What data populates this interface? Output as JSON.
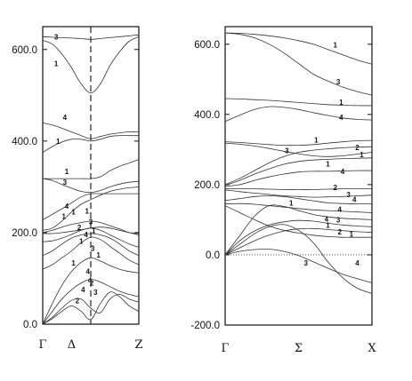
{
  "chart_data": [
    {
      "type": "line",
      "ylim": [
        0,
        650
      ],
      "yticks": [
        {
          "value": 0,
          "label": "0.0"
        },
        {
          "value": 200,
          "label": "200.0"
        },
        {
          "value": 400,
          "label": "400.0"
        },
        {
          "value": 600,
          "label": "600.0"
        }
      ],
      "xticks": [
        {
          "value": 0,
          "label": "Γ"
        },
        {
          "value": 0.3,
          "label": "Δ"
        },
        {
          "value": 1,
          "label": "Z"
        }
      ],
      "vline_x": 0.5,
      "x": [
        0,
        0.1,
        0.2,
        0.3,
        0.4,
        0.5,
        0.6,
        0.7,
        0.8,
        0.9,
        1.0
      ],
      "series": [
        {
          "values": [
            628,
            627,
            626,
            625,
            624,
            622,
            624,
            626,
            628,
            630,
            632
          ]
        },
        {
          "values": [
            620,
            612,
            590,
            560,
            525,
            505,
            525,
            565,
            595,
            618,
            628
          ]
        },
        {
          "values": [
            440,
            435,
            428,
            420,
            412,
            405,
            410,
            415,
            418,
            420,
            420
          ]
        },
        {
          "values": [
            375,
            388,
            398,
            404,
            404,
            400,
            404,
            410,
            412,
            412,
            412
          ]
        },
        {
          "values": [
            318,
            318,
            318,
            318,
            318,
            318,
            322,
            335,
            345,
            352,
            360
          ]
        },
        {
          "values": [
            318,
            314,
            305,
            297,
            290,
            288,
            292,
            300,
            306,
            310,
            312
          ]
        },
        {
          "values": [
            228,
            240,
            252,
            265,
            278,
            285,
            285,
            285,
            285,
            285,
            285
          ]
        },
        {
          "values": [
            205,
            210,
            225,
            245,
            262,
            272,
            282,
            290,
            295,
            298,
            300
          ]
        },
        {
          "values": [
            200,
            205,
            212,
            218,
            222,
            225,
            222,
            215,
            208,
            200,
            195
          ]
        },
        {
          "values": [
            198,
            198,
            200,
            203,
            206,
            210,
            212,
            210,
            205,
            200,
            198
          ]
        },
        {
          "values": [
            180,
            182,
            188,
            196,
            205,
            210,
            205,
            195,
            185,
            175,
            168
          ]
        },
        {
          "values": [
            150,
            160,
            175,
            188,
            195,
            198,
            195,
            188,
            175,
            160,
            150
          ]
        },
        {
          "values": [
            120,
            130,
            145,
            160,
            178,
            190,
            185,
            170,
            155,
            140,
            130
          ]
        },
        {
          "values": [
            0,
            45,
            85,
            115,
            135,
            145,
            138,
            128,
            120,
            115,
            112
          ]
        },
        {
          "values": [
            0,
            28,
            55,
            75,
            90,
            98,
            92,
            82,
            72,
            65,
            60
          ]
        },
        {
          "values": [
            0,
            15,
            35,
            52,
            55,
            35,
            25,
            55,
            65,
            55,
            48
          ]
        },
        {
          "values": [
            0,
            12,
            28,
            40,
            28,
            10,
            45,
            70,
            60,
            40,
            28
          ]
        }
      ],
      "labels": [
        {
          "text": "3",
          "x": 0.14,
          "y": 622
        },
        {
          "text": "1",
          "x": 0.14,
          "y": 564
        },
        {
          "text": "4",
          "x": 0.23,
          "y": 446
        },
        {
          "text": "1",
          "x": 0.16,
          "y": 394
        },
        {
          "text": "1",
          "x": 0.25,
          "y": 328
        },
        {
          "text": "3",
          "x": 0.23,
          "y": 305
        },
        {
          "text": "4",
          "x": 0.25,
          "y": 252
        },
        {
          "text": "1",
          "x": 0.32,
          "y": 240
        },
        {
          "text": "1",
          "x": 0.46,
          "y": 242
        },
        {
          "text": "1",
          "x": 0.22,
          "y": 230
        },
        {
          "text": "2",
          "x": 0.38,
          "y": 206
        },
        {
          "text": "3",
          "x": 0.5,
          "y": 218
        },
        {
          "text": "4",
          "x": 0.45,
          "y": 190
        },
        {
          "text": "1",
          "x": 0.53,
          "y": 199
        },
        {
          "text": "1",
          "x": 0.4,
          "y": 176
        },
        {
          "text": "3",
          "x": 0.52,
          "y": 160
        },
        {
          "text": "1",
          "x": 0.58,
          "y": 146
        },
        {
          "text": "1",
          "x": 0.32,
          "y": 128
        },
        {
          "text": "4",
          "x": 0.47,
          "y": 110
        },
        {
          "text": "4",
          "x": 0.49,
          "y": 90
        },
        {
          "text": "2",
          "x": 0.51,
          "y": 84
        },
        {
          "text": "4",
          "x": 0.42,
          "y": 70
        },
        {
          "text": "3",
          "x": 0.55,
          "y": 64
        },
        {
          "text": "2",
          "x": 0.36,
          "y": 46
        }
      ]
    },
    {
      "type": "line",
      "ylim": [
        -200,
        650
      ],
      "yticks": [
        {
          "value": -200,
          "label": "-200.0"
        },
        {
          "value": 0,
          "label": "0.0"
        },
        {
          "value": 200,
          "label": "200.0"
        },
        {
          "value": 400,
          "label": "400.0"
        },
        {
          "value": 600,
          "label": "600.0"
        }
      ],
      "xticks": [
        {
          "value": 0,
          "label": "Γ"
        },
        {
          "value": 0.5,
          "label": "Σ"
        },
        {
          "value": 1,
          "label": "X"
        }
      ],
      "zero_dotted": true,
      "x": [
        0,
        0.1,
        0.2,
        0.3,
        0.4,
        0.5,
        0.6,
        0.7,
        0.8,
        0.9,
        1.0
      ],
      "series": [
        {
          "values": [
            632,
            631,
            628,
            624,
            618,
            610,
            600,
            585,
            570,
            555,
            543
          ]
        },
        {
          "values": [
            632,
            628,
            618,
            600,
            575,
            545,
            515,
            495,
            478,
            465,
            455
          ]
        },
        {
          "values": [
            445,
            444,
            442,
            440,
            437,
            434,
            431,
            428,
            426,
            425,
            425
          ]
        },
        {
          "values": [
            380,
            398,
            414,
            422,
            420,
            414,
            405,
            397,
            390,
            386,
            384
          ]
        },
        {
          "values": [
            322,
            320,
            317,
            314,
            312,
            312,
            314,
            318,
            322,
            325,
            326
          ]
        },
        {
          "values": [
            318,
            315,
            310,
            303,
            295,
            288,
            282,
            280,
            282,
            287,
            292
          ]
        },
        {
          "values": [
            200,
            218,
            240,
            262,
            280,
            292,
            298,
            302,
            305,
            307,
            308
          ]
        },
        {
          "values": [
            198,
            212,
            230,
            245,
            258,
            266,
            270,
            272,
            274,
            275,
            276
          ]
        },
        {
          "values": [
            195,
            200,
            212,
            222,
            230,
            236,
            238,
            238,
            239,
            240,
            240
          ]
        },
        {
          "values": [
            188,
            188,
            188,
            187,
            186,
            186,
            186,
            187,
            188,
            188,
            188
          ]
        },
        {
          "values": [
            185,
            180,
            176,
            172,
            168,
            166,
            164,
            165,
            166,
            168,
            170
          ]
        },
        {
          "values": [
            155,
            160,
            166,
            168,
            166,
            160,
            154,
            148,
            146,
            145,
            145
          ]
        },
        {
          "values": [
            145,
            146,
            144,
            140,
            136,
            132,
            128,
            126,
            124,
            122,
            120
          ]
        },
        {
          "values": [
            140,
            120,
            100,
            82,
            70,
            62,
            56,
            52,
            50,
            50,
            50
          ]
        },
        {
          "values": [
            0,
            55,
            110,
            140,
            138,
            126,
            115,
            108,
            104,
            102,
            100
          ]
        },
        {
          "values": [
            0,
            40,
            68,
            85,
            94,
            98,
            96,
            90,
            85,
            82,
            80
          ]
        },
        {
          "values": [
            0,
            20,
            40,
            56,
            68,
            74,
            75,
            72,
            69,
            66,
            64
          ]
        },
        {
          "values": [
            0,
            10,
            15,
            16,
            10,
            -2,
            -20,
            -38,
            -55,
            -68,
            -80
          ]
        },
        {
          "values": [
            0,
            30,
            60,
            80,
            86,
            70,
            35,
            -20,
            -65,
            -95,
            -110
          ]
        }
      ],
      "labels": [
        {
          "text": "1",
          "x": 0.75,
          "y": 590
        },
        {
          "text": "3",
          "x": 0.77,
          "y": 486
        },
        {
          "text": "1",
          "x": 0.79,
          "y": 428
        },
        {
          "text": "4",
          "x": 0.79,
          "y": 384
        },
        {
          "text": "1",
          "x": 0.62,
          "y": 320
        },
        {
          "text": "3",
          "x": 0.42,
          "y": 290
        },
        {
          "text": "2",
          "x": 0.9,
          "y": 298
        },
        {
          "text": "1",
          "x": 0.93,
          "y": 278
        },
        {
          "text": "1",
          "x": 0.7,
          "y": 252
        },
        {
          "text": "4",
          "x": 0.8,
          "y": 230
        },
        {
          "text": "2",
          "x": 0.75,
          "y": 185
        },
        {
          "text": "3",
          "x": 0.84,
          "y": 164
        },
        {
          "text": "4",
          "x": 0.88,
          "y": 150
        },
        {
          "text": "1",
          "x": 0.45,
          "y": 140
        },
        {
          "text": "4",
          "x": 0.78,
          "y": 123
        },
        {
          "text": "4",
          "x": 0.69,
          "y": 95
        },
        {
          "text": "3",
          "x": 0.77,
          "y": 92
        },
        {
          "text": "1",
          "x": 0.7,
          "y": 77
        },
        {
          "text": "2",
          "x": 0.78,
          "y": 58
        },
        {
          "text": "1",
          "x": 0.86,
          "y": 52
        },
        {
          "text": "3",
          "x": 0.55,
          "y": -30
        },
        {
          "text": "4",
          "x": 0.9,
          "y": -30
        }
      ]
    }
  ]
}
